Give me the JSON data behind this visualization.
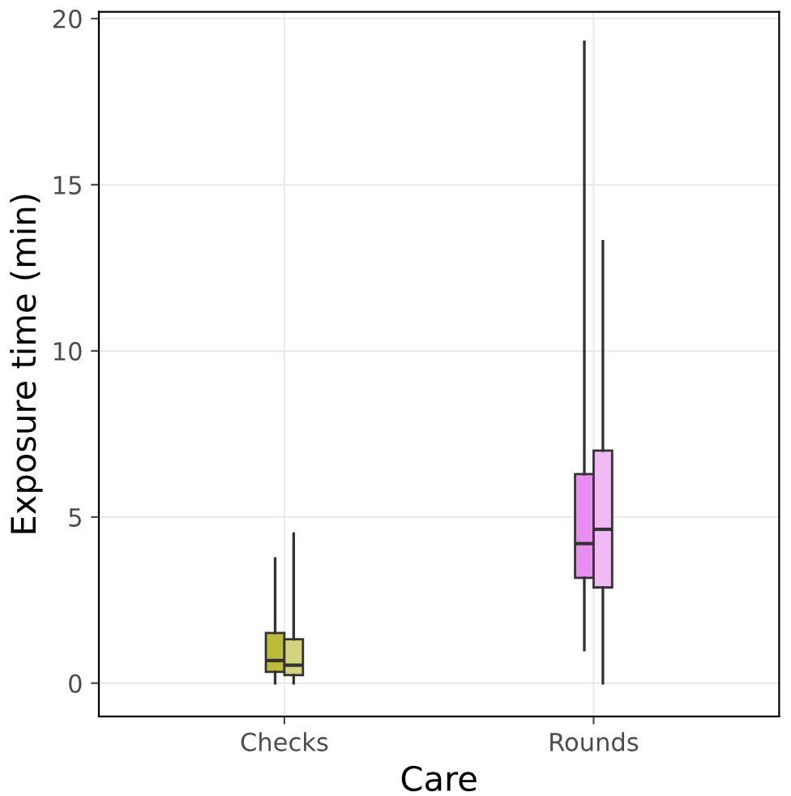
{
  "chart_data": {
    "type": "box",
    "xlabel": "Care",
    "ylabel": "Exposure time (min)",
    "categories": [
      "Checks",
      "Rounds"
    ],
    "series": [
      {
        "colors": [
          "#bcbc3a",
          "#e88ef0"
        ],
        "boxes": [
          {
            "low": 0,
            "q1": 0.34,
            "median": 0.68,
            "q3": 1.51,
            "high": 3.75
          },
          {
            "low": 1,
            "q1": 3.17,
            "median": 4.2,
            "q3": 6.29,
            "high": 19.3
          }
        ]
      },
      {
        "colors": [
          "#d4d47f",
          "#f0b8f5"
        ],
        "boxes": [
          {
            "low": 0,
            "q1": 0.24,
            "median": 0.54,
            "q3": 1.32,
            "high": 4.5
          },
          {
            "low": 0,
            "q1": 2.88,
            "median": 4.63,
            "q3": 7.0,
            "high": 13.3
          }
        ]
      }
    ],
    "ylim": [
      -1,
      20.2
    ],
    "yticks": [
      0,
      5,
      10,
      15,
      20
    ],
    "grid": true,
    "legend": false
  }
}
